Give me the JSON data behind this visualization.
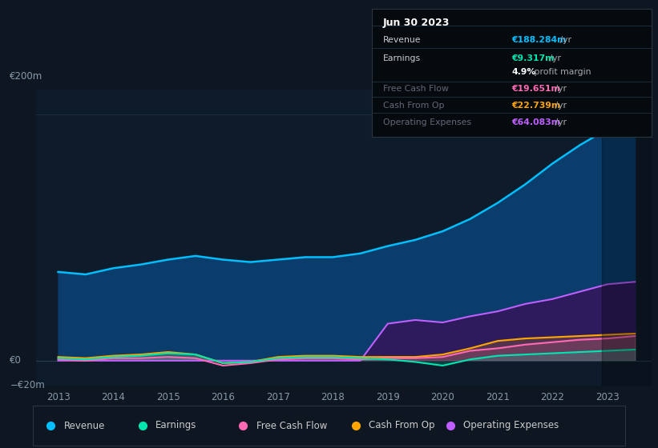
{
  "bg_color": "#0e1621",
  "plot_bg_color": "#0d1b2a",
  "grid_color": "#1a2d40",
  "years": [
    2013,
    2013.5,
    2014,
    2014.5,
    2015,
    2015.5,
    2016,
    2016.5,
    2017,
    2017.5,
    2018,
    2018.5,
    2019,
    2019.5,
    2020,
    2020.5,
    2021,
    2021.5,
    2022,
    2022.5,
    2023,
    2023.5
  ],
  "revenue": [
    72,
    70,
    75,
    78,
    82,
    85,
    82,
    80,
    82,
    84,
    84,
    87,
    93,
    98,
    105,
    115,
    128,
    143,
    160,
    175,
    188,
    188
  ],
  "earnings": [
    2,
    1,
    3,
    4,
    6,
    5,
    -2,
    -1,
    2,
    3,
    3,
    2,
    1,
    -1,
    -4,
    1,
    4,
    5,
    6,
    7,
    8,
    9
  ],
  "fcf": [
    1,
    0,
    2,
    2,
    3,
    2,
    -4,
    -2,
    1,
    2,
    2,
    1,
    2,
    2,
    3,
    8,
    10,
    13,
    15,
    17,
    18,
    20
  ],
  "cashfromop": [
    3,
    2,
    4,
    5,
    7,
    5,
    -2,
    -1,
    3,
    4,
    4,
    3,
    3,
    3,
    5,
    10,
    16,
    18,
    19,
    20,
    21,
    22
  ],
  "opex": [
    0,
    0,
    0,
    0,
    0,
    0,
    0,
    0,
    0,
    0,
    0,
    0,
    30,
    33,
    31,
    36,
    40,
    46,
    50,
    56,
    62,
    64
  ],
  "revenue_color": "#00bfff",
  "earnings_color": "#00e5b0",
  "fcf_color": "#ff69b4",
  "cashfromop_color": "#ffa500",
  "opex_color": "#bf5fff",
  "revenue_fill": "#0a3d6b",
  "opex_fill": "#2d1b5e",
  "ylim": [
    -20,
    220
  ],
  "xlim": [
    2012.6,
    2023.8
  ],
  "xticks": [
    2013,
    2014,
    2015,
    2016,
    2017,
    2018,
    2019,
    2020,
    2021,
    2022,
    2023
  ],
  "legend": [
    {
      "label": "Revenue",
      "color": "#00bfff"
    },
    {
      "label": "Earnings",
      "color": "#00e5b0"
    },
    {
      "label": "Free Cash Flow",
      "color": "#ff69b4"
    },
    {
      "label": "Cash From Op",
      "color": "#ffa500"
    },
    {
      "label": "Operating Expenses",
      "color": "#bf5fff"
    }
  ],
  "info_box": {
    "date": "Jun 30 2023",
    "rows": [
      {
        "label": "Revenue",
        "value": "€188.284m",
        "suffix": " /yr",
        "value_color": "#00bfff",
        "dim": false
      },
      {
        "label": "Earnings",
        "value": "€9.317m",
        "suffix": " /yr",
        "value_color": "#00e5b0",
        "dim": false
      },
      {
        "label": "",
        "value": "4.9%",
        "suffix": " profit margin",
        "value_color": "#ffffff",
        "dim": false
      },
      {
        "label": "Free Cash Flow",
        "value": "€19.651m",
        "suffix": " /yr",
        "value_color": "#ff69b4",
        "dim": true
      },
      {
        "label": "Cash From Op",
        "value": "€22.739m",
        "suffix": " /yr",
        "value_color": "#ffa500",
        "dim": true
      },
      {
        "label": "Operating Expenses",
        "value": "€64.083m",
        "suffix": " /yr",
        "value_color": "#bf5fff",
        "dim": true
      }
    ]
  }
}
